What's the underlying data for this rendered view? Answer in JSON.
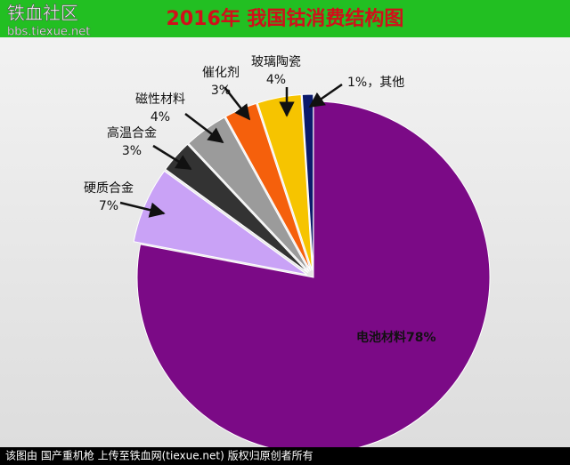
{
  "watermark": {
    "site": "铁血社区",
    "url": "bbs.tiexue.net"
  },
  "chart_data": {
    "type": "pie",
    "title": "2016年 我国钴消费结构图",
    "categories": [
      "电池材料",
      "硬质合金",
      "高温合金",
      "磁性材料",
      "催化剂",
      "玻璃陶瓷",
      "其他"
    ],
    "values": [
      78,
      7,
      3,
      4,
      3,
      4,
      1
    ],
    "value_labels": [
      "78%",
      "7%",
      "3%",
      "4%",
      "3%",
      "4%",
      "1%，"
    ],
    "colors": [
      "#7b0a86",
      "#c9a2f6",
      "#333333",
      "#9b9b9b",
      "#f5600c",
      "#f6c400",
      "#0b1a6b"
    ]
  },
  "footer": "该图由 国产重机枪 上传至铁血网(tiexue.net) 版权归原创者所有"
}
